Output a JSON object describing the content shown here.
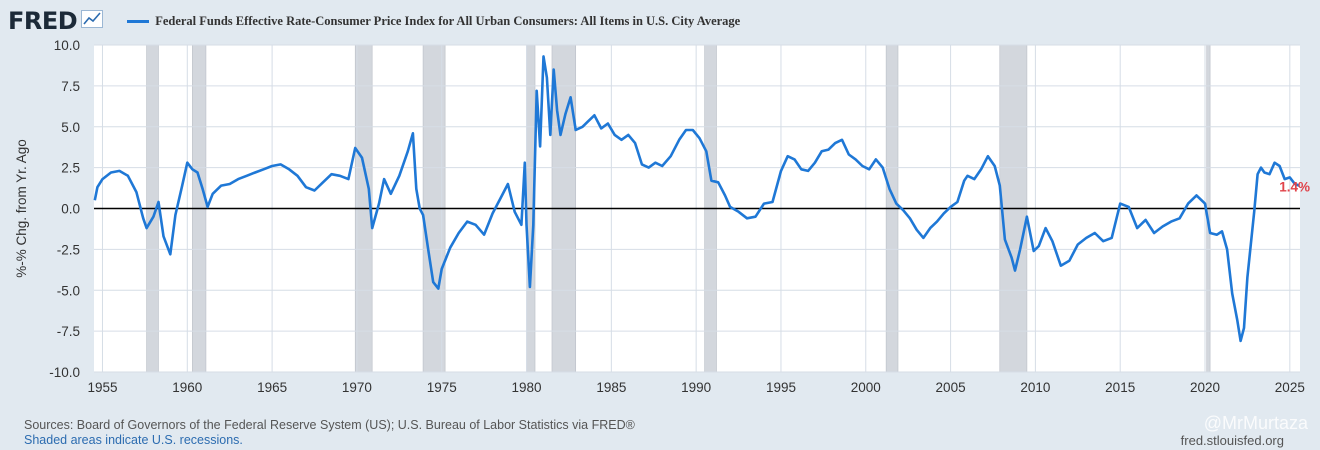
{
  "header": {
    "logo_text": "FRED",
    "legend_label": "Federal Funds Effective Rate-Consumer Price Index for All Urban Consumers: All Items in U.S. City Average"
  },
  "footer": {
    "sources": "Sources: Board of Governors of the Federal Reserve System (US); U.S. Bureau of Labor Statistics via FRED®",
    "recession_note": "Shaded areas indicate U.S. recessions.",
    "credit": "fred.stlouisfed.org",
    "watermark": "@MrMurtaza"
  },
  "colors": {
    "series": "#1f78d6",
    "recession": "#d3d7dd",
    "last_value": "#e0434a",
    "plot_bg": "#ffffff",
    "page_bg": "#e1e9f0"
  },
  "chart_data": {
    "type": "line",
    "title": "Federal Funds Effective Rate-Consumer Price Index for All Urban Consumers: All Items in U.S. City Average",
    "xlabel": "",
    "ylabel": "%-% Chg. from Yr. Ago",
    "xlim": [
      1954.5,
      2025.6
    ],
    "ylim": [
      -10.0,
      10.0
    ],
    "x_ticks": [
      "1955",
      "1960",
      "1965",
      "1970",
      "1975",
      "1980",
      "1985",
      "1990",
      "1995",
      "2000",
      "2005",
      "2010",
      "2015",
      "2020",
      "2025"
    ],
    "y_ticks": [
      "10.0",
      "7.5",
      "5.0",
      "2.5",
      "0.0",
      "-2.5",
      "-5.0",
      "-7.5",
      "-10.0"
    ],
    "zero_line": 0.0,
    "last_value_label": "1.4%",
    "recessions": [
      [
        1957.6,
        1958.3
      ],
      [
        1960.3,
        1961.1
      ],
      [
        1969.9,
        1970.9
      ],
      [
        1973.9,
        1975.2
      ],
      [
        1980.0,
        1980.5
      ],
      [
        1981.5,
        1982.9
      ],
      [
        1990.5,
        1991.2
      ],
      [
        2001.2,
        2001.9
      ],
      [
        2007.9,
        2009.5
      ],
      [
        2020.1,
        2020.3
      ]
    ],
    "series": [
      {
        "name": "Federal Funds Effective Rate-Consumer Price Index for All Urban Consumers: All Items in U.S. City Average",
        "x": [
          1954.55,
          1954.7,
          1955.0,
          1955.5,
          1956.0,
          1956.5,
          1957.0,
          1957.4,
          1957.6,
          1958.0,
          1958.3,
          1958.6,
          1959.0,
          1959.3,
          1959.7,
          1960.0,
          1960.3,
          1960.6,
          1960.9,
          1961.2,
          1961.5,
          1962.0,
          1962.5,
          1963.0,
          1963.5,
          1964.0,
          1964.5,
          1965.0,
          1965.5,
          1966.0,
          1966.5,
          1967.0,
          1967.5,
          1968.0,
          1968.5,
          1969.0,
          1969.5,
          1969.9,
          1970.3,
          1970.7,
          1970.9,
          1971.3,
          1971.6,
          1972.0,
          1972.5,
          1973.0,
          1973.3,
          1973.5,
          1973.7,
          1973.9,
          1974.2,
          1974.5,
          1974.8,
          1975.0,
          1975.5,
          1976.0,
          1976.5,
          1977.0,
          1977.5,
          1978.0,
          1978.5,
          1978.9,
          1979.3,
          1979.7,
          1979.9,
          1980.0,
          1980.2,
          1980.4,
          1980.6,
          1980.8,
          1981.0,
          1981.2,
          1981.4,
          1981.6,
          1981.8,
          1982.0,
          1982.3,
          1982.6,
          1982.9,
          1983.3,
          1983.6,
          1984.0,
          1984.4,
          1984.8,
          1985.2,
          1985.6,
          1986.0,
          1986.4,
          1986.8,
          1987.2,
          1987.6,
          1988.0,
          1988.5,
          1989.0,
          1989.4,
          1989.8,
          1990.2,
          1990.6,
          1990.9,
          1991.3,
          1991.7,
          1992.0,
          1992.5,
          1993.0,
          1993.5,
          1994.0,
          1994.5,
          1995.0,
          1995.4,
          1995.8,
          1996.2,
          1996.6,
          1997.0,
          1997.4,
          1997.8,
          1998.2,
          1998.6,
          1999.0,
          1999.4,
          1999.8,
          2000.2,
          2000.6,
          2001.0,
          2001.4,
          2001.8,
          2002.2,
          2002.6,
          2003.0,
          2003.4,
          2003.8,
          2004.2,
          2004.6,
          2005.0,
          2005.4,
          2005.8,
          2006.0,
          2006.4,
          2006.8,
          2007.2,
          2007.6,
          2007.9,
          2008.2,
          2008.6,
          2008.8,
          2009.1,
          2009.5,
          2009.9,
          2010.2,
          2010.6,
          2011.0,
          2011.5,
          2012.0,
          2012.5,
          2013.0,
          2013.5,
          2014.0,
          2014.5,
          2015.0,
          2015.5,
          2016.0,
          2016.5,
          2017.0,
          2017.5,
          2018.0,
          2018.5,
          2019.0,
          2019.5,
          2020.0,
          2020.3,
          2020.7,
          2021.0,
          2021.3,
          2021.6,
          2021.9,
          2022.1,
          2022.3,
          2022.5,
          2022.7,
          2022.9,
          2023.1,
          2023.3,
          2023.5,
          2023.8,
          2024.1,
          2024.4,
          2024.7,
          2025.0,
          2025.3,
          2025.55
        ],
        "values": [
          0.5,
          1.3,
          1.8,
          2.2,
          2.3,
          2.0,
          1.0,
          -0.6,
          -1.2,
          -0.5,
          0.4,
          -1.7,
          -2.8,
          -0.4,
          1.4,
          2.8,
          2.4,
          2.2,
          1.2,
          0.1,
          0.9,
          1.4,
          1.5,
          1.8,
          2.0,
          2.2,
          2.4,
          2.6,
          2.7,
          2.4,
          2.0,
          1.3,
          1.1,
          1.6,
          2.1,
          2.0,
          1.8,
          3.7,
          3.1,
          1.2,
          -1.2,
          0.3,
          1.8,
          0.9,
          2.0,
          3.5,
          4.6,
          1.2,
          0.0,
          -0.4,
          -2.5,
          -4.5,
          -4.9,
          -3.7,
          -2.4,
          -1.5,
          -0.8,
          -1.0,
          -1.6,
          -0.3,
          0.7,
          1.5,
          -0.2,
          -1.0,
          2.8,
          -1.0,
          -4.8,
          -1.0,
          7.2,
          3.8,
          9.3,
          8.0,
          4.5,
          8.5,
          6.0,
          4.5,
          5.8,
          6.8,
          4.8,
          5.0,
          5.3,
          5.7,
          4.9,
          5.2,
          4.5,
          4.2,
          4.5,
          4.0,
          2.7,
          2.5,
          2.8,
          2.6,
          3.2,
          4.2,
          4.8,
          4.8,
          4.3,
          3.5,
          1.7,
          1.6,
          0.8,
          0.1,
          -0.2,
          -0.6,
          -0.5,
          0.3,
          0.4,
          2.3,
          3.2,
          3.0,
          2.4,
          2.3,
          2.8,
          3.5,
          3.6,
          4.0,
          4.2,
          3.3,
          3.0,
          2.6,
          2.4,
          3.0,
          2.5,
          1.2,
          0.3,
          -0.1,
          -0.6,
          -1.3,
          -1.8,
          -1.2,
          -0.8,
          -0.3,
          0.1,
          0.4,
          1.7,
          2.0,
          1.8,
          2.4,
          3.2,
          2.6,
          1.4,
          -1.9,
          -3.0,
          -3.8,
          -2.5,
          -0.5,
          -2.6,
          -2.3,
          -1.2,
          -2.0,
          -3.5,
          -3.2,
          -2.2,
          -1.8,
          -1.5,
          -2.0,
          -1.8,
          0.3,
          0.1,
          -1.2,
          -0.7,
          -1.5,
          -1.1,
          -0.8,
          -0.6,
          0.3,
          0.8,
          0.3,
          -1.5,
          -1.6,
          -1.4,
          -2.5,
          -5.2,
          -6.8,
          -8.1,
          -7.3,
          -4.2,
          -2.2,
          -0.2,
          2.1,
          2.5,
          2.2,
          2.1,
          2.8,
          2.6,
          1.8,
          1.9,
          1.5,
          1.4
        ]
      }
    ]
  }
}
